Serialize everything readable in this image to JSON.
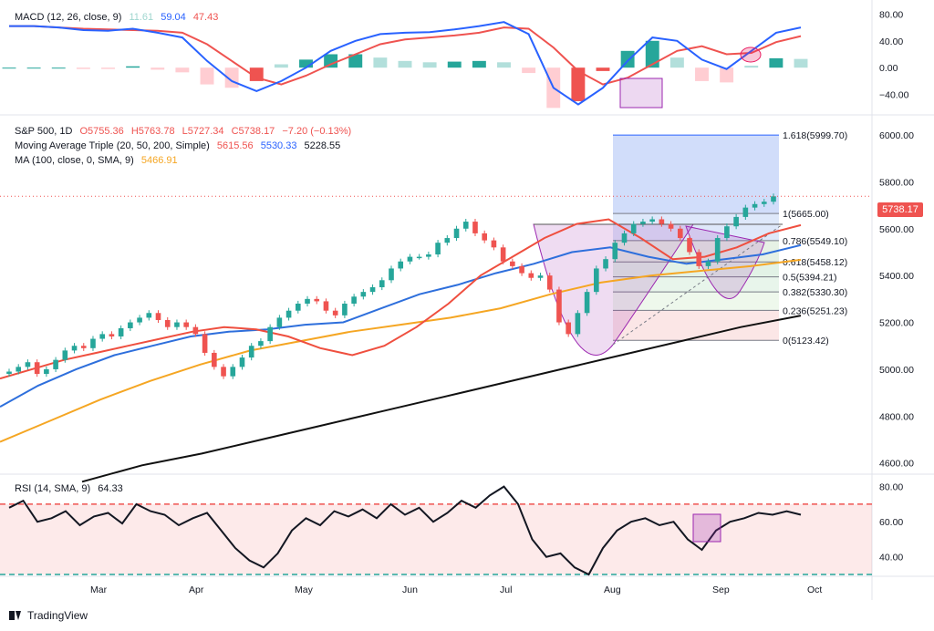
{
  "macd_legend": {
    "label": "MACD (12, 26, close, 9)",
    "hist": "11.61",
    "macd": "59.04",
    "signal": "47.43"
  },
  "price_legend": {
    "line1": {
      "symbol": "S&P 500, 1D",
      "o": "O5755.36",
      "h": "H5763.78",
      "l": "L5727.34",
      "c": "C5738.17",
      "chg": "−7.20 (−0.13%)"
    },
    "line2": {
      "label": "Moving Average Triple (20, 50, 200, Simple)",
      "v1": "5615.56",
      "v2": "5530.33",
      "v3": "5228.55"
    },
    "line3": {
      "label": "MA (100, close, 0, SMA, 9)",
      "v1": "5466.91"
    }
  },
  "rsi_legend": {
    "label": "RSI (14, SMA, 9)",
    "value": "64.33"
  },
  "last_price": "5738.17",
  "footer": {
    "brand": "TradingView"
  },
  "colors": {
    "up": "#26a69a",
    "down": "#ef5350",
    "ma20": "#ef4f3f",
    "ma50": "#2e6fdc",
    "ma200": "#111111",
    "ma100": "#f5a623",
    "fib_purple": "#9c27b0"
  },
  "chart_data": [
    {
      "type": "line",
      "title": "MACD (12, 26, close, 9)",
      "x_labels": [
        "Mar",
        "Apr",
        "May",
        "Jun",
        "Jul",
        "Aug",
        "Sep",
        "Oct"
      ],
      "y_ticks": [
        80,
        40,
        0,
        -40
      ],
      "ylim": [
        -65,
        90
      ],
      "series": [
        {
          "name": "MACD",
          "values": [
            62,
            62,
            60,
            56,
            55,
            58,
            52,
            45,
            10,
            -20,
            -35,
            -20,
            0,
            25,
            40,
            50,
            52,
            53,
            57,
            62,
            68,
            50,
            -30,
            -55,
            -30,
            10,
            45,
            40,
            12,
            -2,
            25,
            52,
            60
          ]
        },
        {
          "name": "Signal",
          "values": [
            62,
            62,
            60,
            58,
            57,
            56,
            55,
            52,
            35,
            10,
            -15,
            -25,
            -12,
            5,
            20,
            35,
            42,
            45,
            48,
            52,
            60,
            58,
            30,
            -5,
            -25,
            -15,
            5,
            25,
            32,
            20,
            22,
            38,
            47
          ]
        }
      ]
    },
    {
      "type": "candlestick",
      "title": "S&P 500, 1D",
      "x_labels": [
        "Mar",
        "Apr",
        "May",
        "Jun",
        "Jul",
        "Aug",
        "Sep",
        "Oct"
      ],
      "y_ticks": [
        6000,
        5800,
        5600,
        5400,
        5200,
        5000,
        4800,
        4600
      ],
      "ylim": [
        4560,
        6070
      ],
      "close": [
        4990,
        5010,
        5030,
        4980,
        5000,
        5040,
        5080,
        5100,
        5090,
        5130,
        5150,
        5140,
        5175,
        5200,
        5220,
        5240,
        5210,
        5180,
        5200,
        5180,
        5150,
        5070,
        5010,
        4970,
        5010,
        5050,
        5100,
        5120,
        5180,
        5220,
        5250,
        5280,
        5300,
        5290,
        5250,
        5230,
        5280,
        5310,
        5330,
        5350,
        5380,
        5430,
        5460,
        5480,
        5480,
        5490,
        5540,
        5560,
        5600,
        5630,
        5580,
        5550,
        5520,
        5460,
        5440,
        5410,
        5390,
        5400,
        5340,
        5200,
        5150,
        5240,
        5330,
        5430,
        5470,
        5540,
        5580,
        5620,
        5630,
        5640,
        5620,
        5600,
        5560,
        5500,
        5440,
        5460,
        5560,
        5610,
        5650,
        5690,
        5705,
        5715,
        5738
      ],
      "ma20": [
        4960,
        5000,
        5040,
        5070,
        5100,
        5130,
        5160,
        5180,
        5170,
        5140,
        5090,
        5060,
        5100,
        5180,
        5280,
        5400,
        5480,
        5560,
        5620,
        5640,
        5560,
        5470,
        5480,
        5520,
        5580,
        5615
      ],
      "ma50": [
        4840,
        4930,
        5000,
        5060,
        5100,
        5140,
        5160,
        5170,
        5190,
        5200,
        5260,
        5320,
        5360,
        5410,
        5450,
        5500,
        5520,
        5480,
        5450,
        5470,
        5490,
        5530
      ],
      "ma100": [
        4690,
        4780,
        4870,
        4950,
        5020,
        5080,
        5120,
        5160,
        5190,
        5220,
        5260,
        5320,
        5370,
        5400,
        5420,
        5440,
        5467
      ],
      "ma200": [
        4520,
        4590,
        4640,
        4700,
        4760,
        4820,
        4880,
        4940,
        5000,
        5060,
        5120,
        5180,
        5229
      ],
      "fib_levels": [
        {
          "ratio": "1.618",
          "value": 5999.7
        },
        {
          "ratio": "1",
          "value": 5665.0
        },
        {
          "ratio": "0.786",
          "value": 5549.1
        },
        {
          "ratio": "0.618",
          "value": 5458.12
        },
        {
          "ratio": "0.5",
          "value": 5394.21
        },
        {
          "ratio": "0.382",
          "value": 5330.3
        },
        {
          "ratio": "0.236",
          "value": 5251.23
        },
        {
          "ratio": "0",
          "value": 5123.42
        }
      ]
    },
    {
      "type": "line",
      "title": "RSI (14, SMA, 9)",
      "x_labels": [
        "Mar",
        "Apr",
        "May",
        "Jun",
        "Jul",
        "Aug",
        "Sep",
        "Oct"
      ],
      "y_ticks": [
        80,
        60,
        40
      ],
      "ylim": [
        30,
        85
      ],
      "bands": [
        70,
        30
      ],
      "values": [
        68,
        72,
        60,
        62,
        66,
        58,
        63,
        65,
        59,
        70,
        66,
        64,
        58,
        62,
        65,
        55,
        45,
        38,
        34,
        42,
        55,
        62,
        58,
        66,
        63,
        67,
        62,
        70,
        64,
        68,
        60,
        65,
        72,
        68,
        75,
        80,
        70,
        50,
        40,
        42,
        34,
        30,
        45,
        55,
        60,
        62,
        58,
        60,
        50,
        44,
        55,
        60,
        62,
        65,
        64,
        66,
        64
      ]
    }
  ]
}
